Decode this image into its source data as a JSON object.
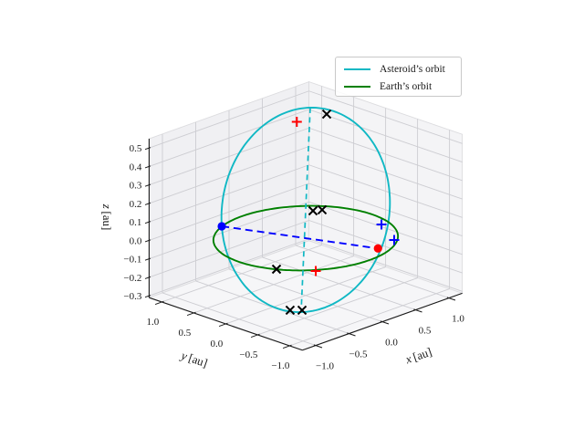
{
  "chart_data": {
    "type": "line3d",
    "title": "",
    "background": "#ffffff",
    "text_color": "#1a1a1a",
    "legend": {
      "position": "upper right",
      "entries": [
        {
          "label": "Asteroid’s orbit",
          "color": "#10b8c4"
        },
        {
          "label": "Earth’s orbit",
          "color": "#008000"
        }
      ]
    },
    "axes": {
      "x": {
        "var": "x",
        "unit": "[au]",
        "ticks": [
          -1.0,
          -0.5,
          0.0,
          0.5,
          1.0
        ],
        "range": [
          -1.2,
          1.2
        ]
      },
      "y": {
        "var": "y",
        "unit": "[au]",
        "ticks": [
          -1.0,
          -0.5,
          0.0,
          0.5,
          1.0
        ],
        "range": [
          -1.2,
          1.2
        ]
      },
      "z": {
        "var": "z",
        "unit": "[au]",
        "ticks": [
          -0.3,
          -0.2,
          -0.1,
          0.0,
          0.1,
          0.2,
          0.3,
          0.4,
          0.5
        ],
        "range": [
          -0.31,
          0.55
        ]
      },
      "grid": true,
      "pane_colors": {
        "left": "#f0f0f3",
        "right": "#f4f4f6",
        "floor": "#f6f6f8"
      },
      "grid_color": "#cdcdd2",
      "edge_color": "#1a1a1a"
    },
    "orbits": [
      {
        "name": "asteroid-orbit",
        "color": "#10b8c4",
        "width": 1.9,
        "center": [
          0,
          0,
          0.153
        ],
        "u": [
          0.035,
          -0.035,
          0.553
        ],
        "v": [
          0.64,
          -0.649,
          0.005
        ]
      },
      {
        "name": "earth-orbit",
        "color": "#008000",
        "width": 1.9,
        "center": [
          0,
          0,
          0
        ],
        "u": [
          1,
          0,
          0
        ],
        "v": [
          0,
          1,
          0
        ]
      }
    ],
    "lines": [
      {
        "name": "orbit-vertical-extent-line",
        "color": "#10b8c4",
        "dash": [
          6,
          4.5
        ],
        "width": 1.7,
        "p1": [
          0.035,
          -0.035,
          0.706
        ],
        "p2": [
          -0.035,
          0.035,
          -0.4
        ]
      },
      {
        "name": "earth-asteroid-separation-line",
        "color": "#0000ff",
        "dash": [
          8,
          5
        ],
        "width": 1.9,
        "p1": [
          -0.363,
          0.935,
          0
        ],
        "p2": [
          0.51,
          -0.6,
          -0.05
        ]
      }
    ],
    "markers": [
      {
        "name": "earth-position-dot",
        "shape": "dot",
        "color": "#0000ff",
        "pos": [
          -0.363,
          0.935,
          0
        ]
      },
      {
        "name": "asteroid-position-dot",
        "shape": "dot",
        "color": "#ff0000",
        "pos": [
          0.51,
          -0.6,
          -0.05
        ]
      },
      {
        "name": "node-plus-1",
        "shape": "plus",
        "color": "#0000ff",
        "pos": [
          0.852,
          -0.298,
          0
        ]
      },
      {
        "name": "node-plus-2",
        "shape": "plus",
        "color": "#0000ff",
        "pos": [
          0.612,
          -0.747,
          0
        ]
      },
      {
        "name": "red-plus-top",
        "shape": "plus",
        "color": "#ff0000",
        "pos": [
          -0.067,
          0.069,
          0.63
        ]
      },
      {
        "name": "red-plus-bottom",
        "shape": "plus",
        "color": "#ff0000",
        "pos": [
          -0.631,
          -0.816,
          0
        ]
      },
      {
        "name": "cross-top",
        "shape": "x",
        "color": "#000000",
        "pos": [
          0.16,
          -0.162,
          0.67
        ]
      },
      {
        "name": "cross-mid-1",
        "shape": "x",
        "color": "#000000",
        "pos": [
          0.642,
          0.555,
          0
        ]
      },
      {
        "name": "cross-mid-2",
        "shape": "x",
        "color": "#000000",
        "pos": [
          0.729,
          0.503,
          0
        ]
      },
      {
        "name": "cross-front-left",
        "shape": "x",
        "color": "#000000",
        "pos": [
          -0.881,
          -0.462,
          0
        ]
      },
      {
        "name": "cross-floor-1",
        "shape": "x",
        "color": "#000000",
        "pos": [
          -0.432,
          -0.207,
          -0.31
        ]
      },
      {
        "name": "cross-floor-2",
        "shape": "x",
        "color": "#000000",
        "pos": [
          -0.344,
          -0.302,
          -0.31
        ]
      }
    ]
  }
}
